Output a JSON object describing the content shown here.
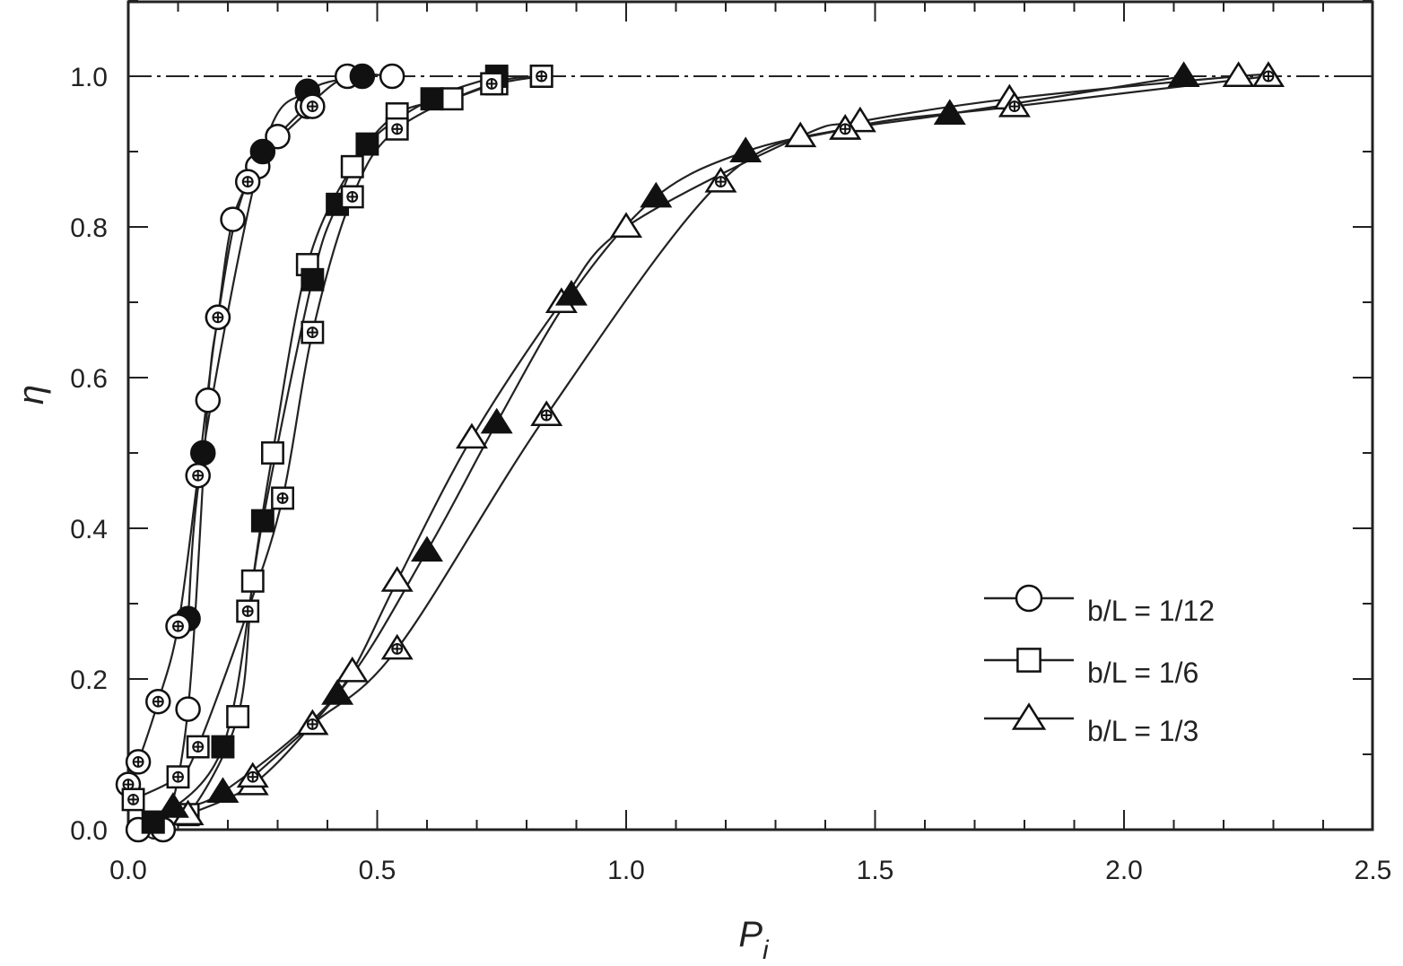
{
  "chart_data": {
    "type": "line",
    "xlabel_main": "P",
    "xlabel_sub": "i",
    "ylabel": "η",
    "xlim": [
      0,
      2.5
    ],
    "ylim": [
      0,
      1.1
    ],
    "xticks": [
      0.0,
      0.5,
      1.0,
      1.5,
      2.0,
      2.5
    ],
    "xtick_labels": [
      "0.0",
      "0.5",
      "1.0",
      "1.5",
      "2.0",
      "2.5"
    ],
    "yticks": [
      0.0,
      0.2,
      0.4,
      0.6,
      0.8,
      1.0
    ],
    "ytick_labels": [
      "0.0",
      "0.2",
      "0.4",
      "0.6",
      "0.8",
      "1.0"
    ],
    "reference_line": {
      "y": 1.0,
      "style": "dash-dot"
    },
    "grid": false,
    "legend_position": "bottom-right",
    "legend": [
      {
        "label": "b/L = 1/12",
        "marker": "circle"
      },
      {
        "label": "b/L = 1/6",
        "marker": "square"
      },
      {
        "label": "b/L = 1/3",
        "marker": "triangle"
      }
    ],
    "series": [
      {
        "marker": "circle",
        "style": "open",
        "x": [
          0.02,
          0.07,
          0.12,
          0.16,
          0.18,
          0.21,
          0.26,
          0.3,
          0.36,
          0.44,
          0.53
        ],
        "y": [
          0.0,
          0.0,
          0.16,
          0.57,
          0.68,
          0.81,
          0.88,
          0.92,
          0.96,
          1.0,
          1.0
        ]
      },
      {
        "marker": "circle",
        "style": "filled",
        "x": [
          0.12,
          0.15,
          0.27,
          0.36,
          0.47
        ],
        "y": [
          0.28,
          0.5,
          0.9,
          0.98,
          1.0
        ]
      },
      {
        "marker": "circle",
        "style": "crossed",
        "x": [
          0.0,
          0.02,
          0.06,
          0.1,
          0.14,
          0.18,
          0.24,
          0.37
        ],
        "y": [
          0.06,
          0.09,
          0.17,
          0.27,
          0.47,
          0.68,
          0.86,
          0.96
        ]
      },
      {
        "marker": "square",
        "style": "open",
        "x": [
          0.05,
          0.12,
          0.22,
          0.25,
          0.29,
          0.36,
          0.45,
          0.54,
          0.65,
          0.74,
          0.83
        ],
        "y": [
          0.01,
          0.02,
          0.15,
          0.33,
          0.5,
          0.75,
          0.88,
          0.95,
          0.97,
          0.99,
          1.0
        ]
      },
      {
        "marker": "square",
        "style": "filled",
        "x": [
          0.05,
          0.19,
          0.27,
          0.37,
          0.42,
          0.48,
          0.61,
          0.74
        ],
        "y": [
          0.01,
          0.11,
          0.41,
          0.73,
          0.83,
          0.91,
          0.97,
          1.0
        ]
      },
      {
        "marker": "square",
        "style": "crossed",
        "x": [
          0.01,
          0.1,
          0.14,
          0.24,
          0.31,
          0.37,
          0.45,
          0.54,
          0.73,
          0.83
        ],
        "y": [
          0.04,
          0.07,
          0.11,
          0.29,
          0.44,
          0.66,
          0.84,
          0.93,
          0.99,
          1.0
        ]
      },
      {
        "marker": "triangle",
        "style": "open",
        "x": [
          0.12,
          0.25,
          0.37,
          0.45,
          0.54,
          0.69,
          0.87,
          1.0,
          1.35,
          1.47,
          1.77,
          2.23,
          2.29
        ],
        "y": [
          0.02,
          0.06,
          0.14,
          0.21,
          0.33,
          0.52,
          0.7,
          0.8,
          0.92,
          0.94,
          0.97,
          1.0,
          1.0
        ]
      },
      {
        "marker": "triangle",
        "style": "filled",
        "x": [
          0.09,
          0.19,
          0.42,
          0.6,
          0.74,
          0.89,
          1.06,
          1.24,
          1.44,
          1.65,
          2.12
        ],
        "y": [
          0.03,
          0.05,
          0.18,
          0.37,
          0.54,
          0.71,
          0.84,
          0.9,
          0.93,
          0.95,
          1.0
        ]
      },
      {
        "marker": "triangle",
        "style": "crossed",
        "x": [
          0.25,
          0.37,
          0.54,
          0.84,
          1.19,
          1.44,
          1.78,
          2.29
        ],
        "y": [
          0.07,
          0.14,
          0.24,
          0.55,
          0.86,
          0.93,
          0.96,
          1.0
        ]
      }
    ]
  }
}
